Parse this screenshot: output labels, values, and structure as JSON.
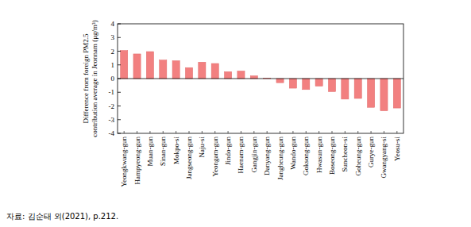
{
  "chart_data": {
    "type": "bar",
    "y_label": "Difference from foreign PM2.5 contribution average in Jeonnam (μg/m³)",
    "source": "자료: 김순태 외(2021), p.212.",
    "categories": [
      "Yeongkwang-gun",
      "Hampyeong-gun",
      "Muan-gun",
      "Sinan-gun",
      "Mokpo-si",
      "Jangseong-gun",
      "Naju-si",
      "Yeongam-gun",
      "Jindo-gun",
      "Haenam-gun",
      "Gangjin-gun",
      "Danyang-gun",
      "Jangheung-gun",
      "Wando-gun",
      "Goksong-gun",
      "Hwasun-gun",
      "Boseong-gun",
      "Suncheon-si",
      "Goheung-gun",
      "Gurye-gun",
      "Gwangyang-si",
      "Yeosu-si"
    ],
    "values": [
      2.05,
      1.8,
      1.97,
      1.35,
      1.3,
      0.8,
      1.2,
      1.1,
      0.5,
      0.55,
      0.2,
      0.02,
      -0.3,
      -0.7,
      -0.8,
      -0.55,
      -0.95,
      -1.5,
      -1.45,
      -2.1,
      -2.35,
      -2.15
    ],
    "color": "#f28080",
    "ylim": [
      -4,
      4
    ],
    "yticks": [
      -4,
      -3,
      -2,
      -1,
      0,
      1,
      2,
      3,
      4
    ],
    "grid": false
  }
}
